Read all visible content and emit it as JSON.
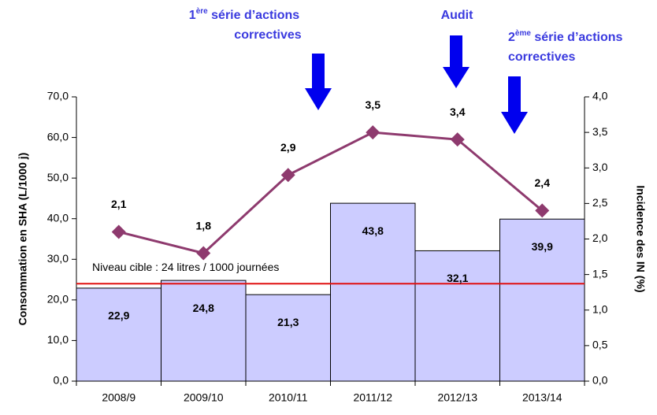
{
  "chart_data": {
    "type": "bar",
    "categories": [
      "2008/9",
      "2009/10",
      "2010/11",
      "2011/12",
      "2012/13",
      "2013/14"
    ],
    "series": [
      {
        "name": "Consommation en SHA",
        "type": "bar",
        "color": "#ccccff",
        "label_color": "#1a1adb",
        "values": [
          22.9,
          24.8,
          21.3,
          43.8,
          32.1,
          39.9
        ],
        "value_labels": [
          "22,9",
          "24,8",
          "21,3",
          "43,8",
          "32,1",
          "39,9"
        ]
      },
      {
        "name": "Incidence des IN",
        "type": "line",
        "axis": "y2",
        "color": "#8e3a6e",
        "label_color": "#8e3a6e",
        "values": [
          2.1,
          1.8,
          2.9,
          3.5,
          3.4,
          2.4
        ],
        "value_labels": [
          "2,1",
          "1,8",
          "2,9",
          "3,5",
          "3,4",
          "2,4"
        ]
      }
    ],
    "ylabel": "Consommation en SHA (L/1000 j)",
    "y2label": "Incidence des IN (%)",
    "ylim": [
      0,
      70
    ],
    "yticks": [
      {
        "value": 0,
        "label": "0,0"
      },
      {
        "value": 10,
        "label": "10,0"
      },
      {
        "value": 20,
        "label": "20,0"
      },
      {
        "value": 30,
        "label": "30,0"
      },
      {
        "value": 40,
        "label": "40,0"
      },
      {
        "value": 50,
        "label": "50,0"
      },
      {
        "value": 60,
        "label": "60,0"
      },
      {
        "value": 70,
        "label": "70,0"
      }
    ],
    "y2lim": [
      0,
      4
    ],
    "y2ticks": [
      {
        "value": 0,
        "label": "0,0"
      },
      {
        "value": 0.5,
        "label": "0,5"
      },
      {
        "value": 1,
        "label": "1,0"
      },
      {
        "value": 1.5,
        "label": "1,5"
      },
      {
        "value": 2,
        "label": "2,0"
      },
      {
        "value": 2.5,
        "label": "2,5"
      },
      {
        "value": 3,
        "label": "3,0"
      },
      {
        "value": 3.5,
        "label": "3,5"
      },
      {
        "value": 4,
        "label": "4,0"
      }
    ],
    "target": {
      "value": 24,
      "label": "Niveau cible : 24 litres / 1000 journées",
      "color": "#e01010"
    },
    "annotations": [
      {
        "number": "1",
        "sup": "ère",
        "text": " série d’actions",
        "line2": "correctives"
      },
      {
        "text": "Audit"
      },
      {
        "number": "2",
        "sup": "ème",
        "text": " série d’actions",
        "line2": "correctives"
      }
    ]
  }
}
